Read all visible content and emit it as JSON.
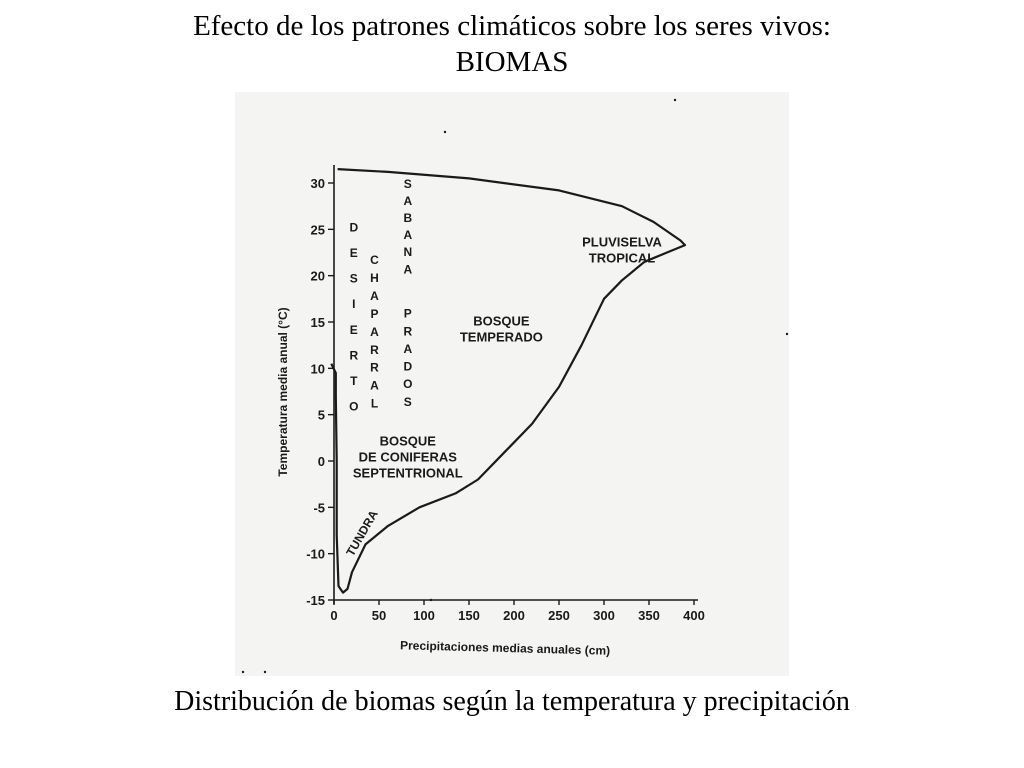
{
  "slide": {
    "title_line1": "Efecto de los patrones climáticos sobre los seres vivos:",
    "title_line2": "BIOMAS",
    "caption": "Distribución de biomas según la temperatura y precipitación"
  },
  "colors": {
    "ink": "#1a1a1a",
    "scan_background": "#f4f4f2",
    "page_background": "#ffffff"
  },
  "chart_data": {
    "type": "area",
    "xlabel": "Precipitaciones medias anuales (cm)",
    "ylabel": "Temperatura media anual (°C)",
    "xlim": [
      0,
      400
    ],
    "ylim": [
      -15,
      30
    ],
    "x_ticks": [
      0,
      50,
      100,
      150,
      200,
      250,
      300,
      350,
      400
    ],
    "y_ticks": [
      30,
      25,
      20,
      15,
      10,
      5,
      0,
      -5,
      -10,
      -15
    ],
    "grid": false,
    "boundary": [
      {
        "x": 4,
        "y": 31.5
      },
      {
        "x": 60,
        "y": 31.2
      },
      {
        "x": 150,
        "y": 30.5
      },
      {
        "x": 250,
        "y": 29.2
      },
      {
        "x": 320,
        "y": 27.5
      },
      {
        "x": 355,
        "y": 25.8
      },
      {
        "x": 385,
        "y": 23.8
      },
      {
        "x": 390,
        "y": 23.3
      },
      {
        "x": 370,
        "y": 22.5
      },
      {
        "x": 345,
        "y": 21.5
      },
      {
        "x": 320,
        "y": 19.5
      },
      {
        "x": 300,
        "y": 17.5
      },
      {
        "x": 275,
        "y": 12.5
      },
      {
        "x": 250,
        "y": 8
      },
      {
        "x": 220,
        "y": 4
      },
      {
        "x": 190,
        "y": 1
      },
      {
        "x": 160,
        "y": -2
      },
      {
        "x": 135,
        "y": -3.5
      },
      {
        "x": 95,
        "y": -5
      },
      {
        "x": 60,
        "y": -7
      },
      {
        "x": 35,
        "y": -9
      },
      {
        "x": 20,
        "y": -12
      },
      {
        "x": 15,
        "y": -13.8
      },
      {
        "x": 10,
        "y": -14.2
      },
      {
        "x": 5,
        "y": -13.5
      },
      {
        "x": 3,
        "y": -8
      },
      {
        "x": 3,
        "y": 0
      },
      {
        "x": 2,
        "y": 7
      },
      {
        "x": 2,
        "y": 9.5
      },
      {
        "x": -3,
        "y": 10.5
      }
    ],
    "regions": [
      {
        "label": "DESIERTO",
        "orientation": "vertical",
        "letters": [
          "D",
          "E",
          "S",
          "I",
          "E",
          "R",
          "T",
          "O"
        ],
        "x": 22,
        "y_top": 25.3,
        "y_bottom": 6
      },
      {
        "label": "CHAPARRAL",
        "orientation": "vertical",
        "letters": [
          "C",
          "H",
          "A",
          "P",
          "A",
          "R",
          "R",
          "A",
          "L"
        ],
        "x": 45,
        "y_top": 21.8,
        "y_bottom": 6.3
      },
      {
        "label": "SABANA",
        "orientation": "vertical",
        "letters": [
          "S",
          "A",
          "B",
          "A",
          "N",
          "A"
        ],
        "x": 82,
        "y_top": 30,
        "y_bottom": 20.8
      },
      {
        "label": "PRADOS",
        "orientation": "vertical",
        "letters": [
          "P",
          "R",
          "A",
          "D",
          "O",
          "S"
        ],
        "x": 82,
        "y_top": 16,
        "y_bottom": 6.5
      },
      {
        "label_lines": [
          "PLUVISELVA",
          "TROPICAL"
        ],
        "x": 320,
        "y": 22.8
      },
      {
        "label_lines": [
          "BOSQUE",
          "TEMPERADO"
        ],
        "x": 186,
        "y": 14.3
      },
      {
        "label_lines": [
          "BOSQUE",
          "DE CONIFERAS",
          "SEPTENTRIONAL"
        ],
        "x": 82,
        "y": 0.5
      },
      {
        "label": "TUNDRA",
        "orientation": "rotated",
        "x": 35,
        "y": -8
      }
    ]
  }
}
